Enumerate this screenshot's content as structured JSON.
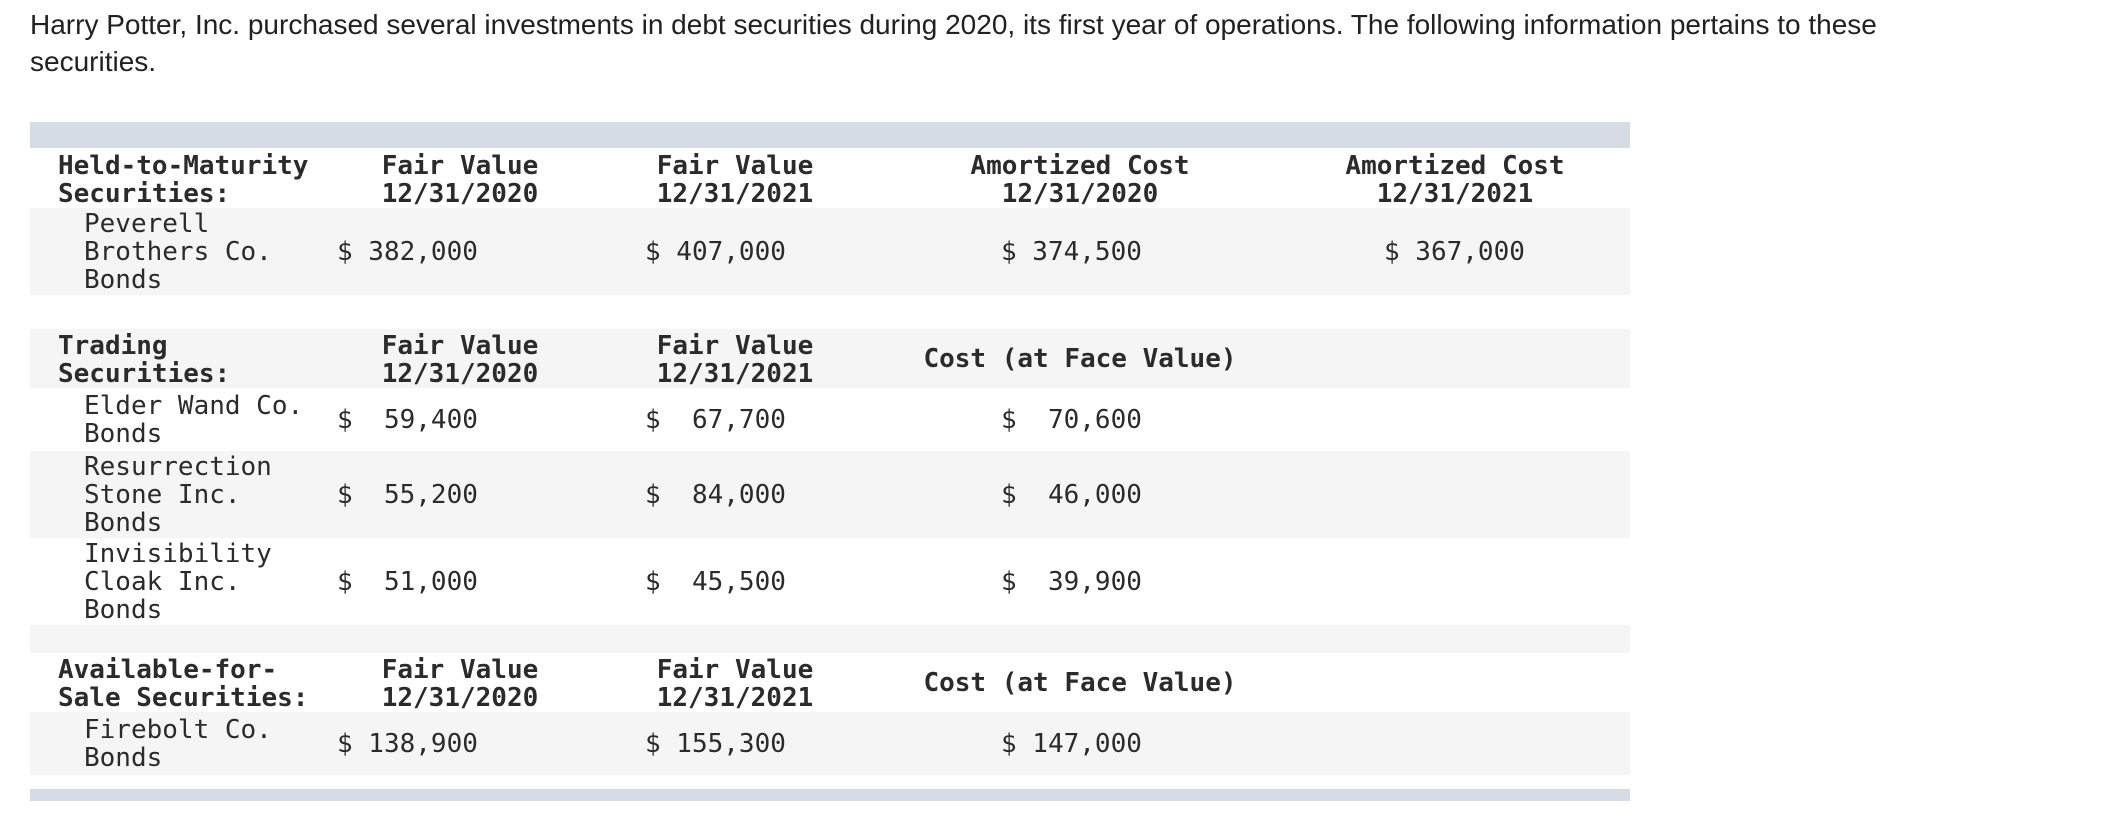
{
  "intro": "Harry Potter, Inc. purchased several investments in debt securities during 2020, its first year of operations. The following information pertains to these securities.",
  "colors": {
    "band": "#d6dce6",
    "row_stripe": "#f5f5f5",
    "text": "#2b2b2b"
  },
  "table": {
    "sections": [
      {
        "title": "Held-to-Maturity\nSecurities:",
        "columns": [
          "Fair Value\n12/31/2020",
          "Fair Value\n12/31/2021",
          "Amortized Cost\n12/31/2020",
          "Amortized Cost\n12/31/2021"
        ],
        "rows": [
          {
            "name": "Peverell\nBrothers Co.\nBonds",
            "values": [
              "$ 382,000",
              "$ 407,000",
              "$ 374,500",
              "$ 367,000"
            ]
          }
        ]
      },
      {
        "title": "Trading\nSecurities:",
        "columns": [
          "Fair Value\n12/31/2020",
          "Fair Value\n12/31/2021",
          "Cost (at Face Value)",
          ""
        ],
        "rows": [
          {
            "name": "Elder Wand Co.\nBonds",
            "values": [
              "$  59,400",
              "$  67,700",
              "$  70,600",
              ""
            ]
          },
          {
            "name": "Resurrection\nStone Inc.\nBonds",
            "values": [
              "$  55,200",
              "$  84,000",
              "$  46,000",
              ""
            ]
          },
          {
            "name": "Invisibility\nCloak Inc.\nBonds",
            "values": [
              "$  51,000",
              "$  45,500",
              "$  39,900",
              ""
            ]
          }
        ]
      },
      {
        "title": "Available-for-\nSale Securities:",
        "columns": [
          "Fair Value\n12/31/2020",
          "Fair Value\n12/31/2021",
          "Cost (at Face Value)",
          ""
        ],
        "rows": [
          {
            "name": "Firebolt Co.\nBonds",
            "values": [
              "$ 138,900",
              "$ 155,300",
              "$ 147,000",
              ""
            ]
          }
        ]
      }
    ]
  }
}
